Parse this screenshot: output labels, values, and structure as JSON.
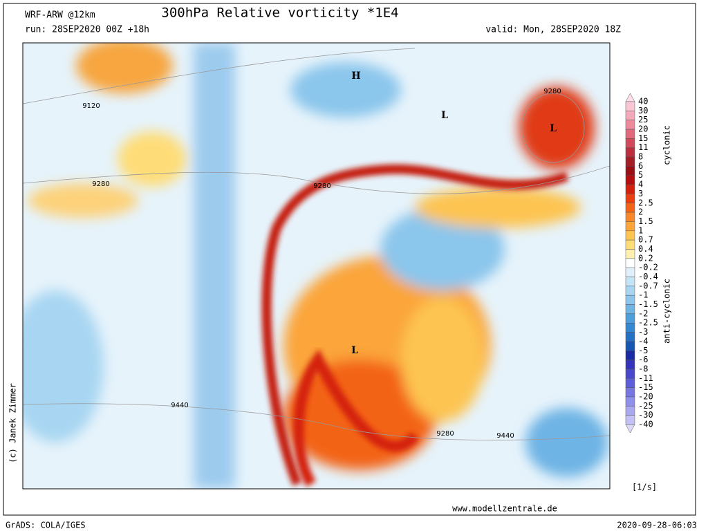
{
  "header": {
    "model": "WRF-ARW @12km",
    "title": "300hPa Relative vorticity *1E4",
    "run": "run: 28SEP2020 00Z +18h",
    "valid": "valid: Mon, 28SEP2020 18Z"
  },
  "map": {
    "pressure_centers": [
      "H",
      "L",
      "L",
      "L"
    ],
    "contour_labels": [
      "9120",
      "9280",
      "9280",
      "9280",
      "9280",
      "9440",
      "9440"
    ]
  },
  "colorbar": {
    "labels": [
      "40",
      "30",
      "25",
      "20",
      "15",
      "11",
      "8",
      "6",
      "5",
      "4",
      "3",
      "2.5",
      "2",
      "1.5",
      "1",
      "0.7",
      "0.4",
      "0.2",
      "-0.2",
      "-0.4",
      "-0.7",
      "-1",
      "-1.5",
      "-2",
      "-2.5",
      "-3",
      "-4",
      "-5",
      "-6",
      "-8",
      "-11",
      "-15",
      "-20",
      "-25",
      "-30",
      "-40"
    ],
    "colors": [
      "#fde0ea",
      "#f9c8d4",
      "#f3a9b9",
      "#ec8a9c",
      "#e06a7c",
      "#d04a5c",
      "#bb2f3f",
      "#a51d27",
      "#9a0f14",
      "#b40f0e",
      "#d4200f",
      "#ea3f12",
      "#f36419",
      "#f98727",
      "#fba53a",
      "#fdc451",
      "#fedd78",
      "#fff0ae",
      "#ffffff",
      "#e0f1fb",
      "#c5e5f7",
      "#a8d6f2",
      "#8bc6ec",
      "#6eb4e5",
      "#509fdd",
      "#3788d2",
      "#2470c4",
      "#1757b4",
      "#1a2aa5",
      "#3333bb",
      "#4848cc",
      "#5e5ed8",
      "#7777e2",
      "#9090ea",
      "#a9a9f0",
      "#c2c2f5",
      "#dcdcfa"
    ],
    "cyclonic_label": "cyclonic",
    "anticyclonic_label": "anti-cyclonic",
    "unit": "[1/s]"
  },
  "footer": {
    "copyright": "(c) Janek Zimmer",
    "website": "www.modellzentrale.de",
    "software": "GrADS: COLA/IGES",
    "timestamp": "2020-09-28-06:03"
  }
}
